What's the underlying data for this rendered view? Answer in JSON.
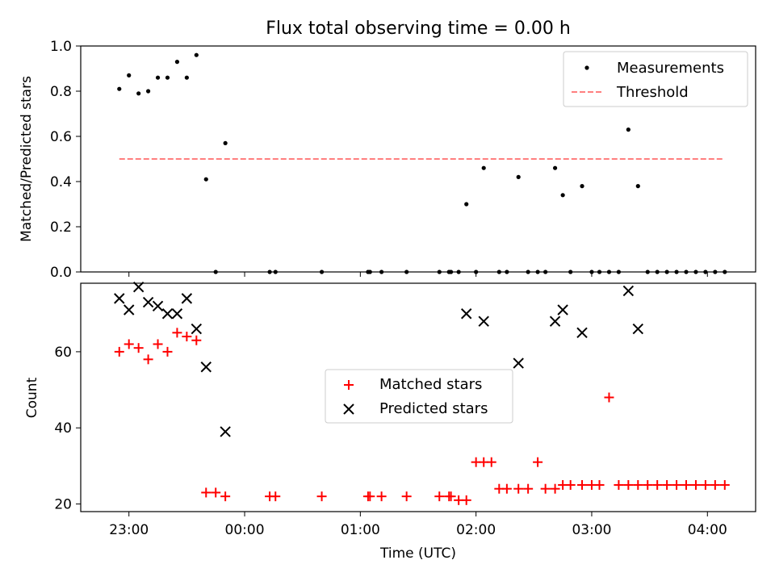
{
  "chart_data": [
    {
      "type": "scatter",
      "title": "Flux total observing time = 0.00 h",
      "xlabel": "",
      "ylabel": "Matched/Predicted stars",
      "ylim": [
        0,
        1.0
      ],
      "xlim": [
        "22:35",
        "04:25"
      ],
      "yticks": [
        "0.0",
        "0.2",
        "0.4",
        "0.6",
        "0.8",
        "1.0"
      ],
      "grid": false,
      "legend_position": "upper right",
      "legend": [
        "Measurements",
        "Threshold"
      ],
      "series": [
        {
          "name": "Measurements",
          "marker": "dot",
          "color": "#000000",
          "x": [
            "22:55",
            "23:00",
            "23:05",
            "23:10",
            "23:15",
            "23:20",
            "23:25",
            "23:30",
            "23:35",
            "23:40",
            "23:45",
            "23:50",
            "00:13",
            "00:16",
            "00:40",
            "01:04",
            "01:05",
            "01:11",
            "01:24",
            "01:41",
            "01:46",
            "01:47",
            "01:51",
            "01:55",
            "02:00",
            "02:04",
            "02:12",
            "02:16",
            "02:22",
            "02:27",
            "02:32",
            "02:36",
            "02:41",
            "02:45",
            "02:49",
            "02:55",
            "03:00",
            "03:04",
            "03:09",
            "03:14",
            "03:19",
            "03:24",
            "03:29",
            "03:34",
            "03:39",
            "03:44",
            "03:49",
            "03:54",
            "03:59",
            "04:04",
            "04:09"
          ],
          "y": [
            0.81,
            0.87,
            0.79,
            0.8,
            0.86,
            0.86,
            0.93,
            0.86,
            0.96,
            0.41,
            0.0,
            0.57,
            0.0,
            0.0,
            0.0,
            0.0,
            0.0,
            0.0,
            0.0,
            0.0,
            0.0,
            0.0,
            0.0,
            0.3,
            0.0,
            0.46,
            0.0,
            0.0,
            0.42,
            0.0,
            0.0,
            0.0,
            0.46,
            0.34,
            0.0,
            0.38,
            0.0,
            0.0,
            0.0,
            0.0,
            0.63,
            0.38,
            0.0,
            0.0,
            0.0,
            0.0,
            0.0,
            0.0,
            0.0,
            0.0,
            0.0
          ]
        },
        {
          "name": "Threshold",
          "style": "dashed",
          "color": "#ff7f7f",
          "x": [
            "22:55",
            "04:09"
          ],
          "y": [
            0.5,
            0.5
          ]
        }
      ]
    },
    {
      "type": "scatter",
      "title": "",
      "xlabel": "Time (UTC)",
      "ylabel": "Count",
      "ylim": [
        18,
        78
      ],
      "xlim": [
        "22:35",
        "04:25"
      ],
      "xticks": [
        "23:00",
        "00:00",
        "01:00",
        "02:00",
        "03:00",
        "04:00"
      ],
      "yticks": [
        "20",
        "40",
        "60"
      ],
      "grid": false,
      "legend_position": "center",
      "legend": [
        "Matched stars",
        "Predicted stars"
      ],
      "series": [
        {
          "name": "Matched stars",
          "marker": "plus",
          "color": "#ff0000",
          "x": [
            "22:55",
            "23:00",
            "23:05",
            "23:10",
            "23:15",
            "23:20",
            "23:25",
            "23:30",
            "23:35",
            "23:40",
            "23:45",
            "23:50",
            "00:13",
            "00:16",
            "00:40",
            "01:04",
            "01:05",
            "01:11",
            "01:24",
            "01:41",
            "01:46",
            "01:47",
            "01:51",
            "01:55",
            "02:00",
            "02:04",
            "02:08",
            "02:12",
            "02:16",
            "02:22",
            "02:27",
            "02:32",
            "02:36",
            "02:41",
            "02:45",
            "02:49",
            "02:55",
            "03:00",
            "03:04",
            "03:09",
            "03:14",
            "03:19",
            "03:24",
            "03:29",
            "03:34",
            "03:39",
            "03:44",
            "03:49",
            "03:54",
            "03:59",
            "04:04",
            "04:09"
          ],
          "y": [
            60,
            62,
            61,
            58,
            62,
            60,
            65,
            64,
            63,
            23,
            23,
            22,
            22,
            22,
            22,
            22,
            22,
            22,
            22,
            22,
            22,
            22,
            21,
            21,
            31,
            31,
            31,
            24,
            24,
            24,
            24,
            31,
            24,
            24,
            25,
            25,
            25,
            25,
            25,
            48,
            25,
            25,
            25,
            25,
            25,
            25,
            25,
            25,
            25,
            25,
            25,
            25
          ]
        },
        {
          "name": "Predicted stars",
          "marker": "x",
          "color": "#000000",
          "x": [
            "22:55",
            "23:00",
            "23:05",
            "23:10",
            "23:15",
            "23:20",
            "23:25",
            "23:30",
            "23:35",
            "23:40",
            "23:50",
            "01:55",
            "02:04",
            "02:22",
            "02:41",
            "02:45",
            "02:55",
            "03:19",
            "03:24"
          ],
          "y": [
            74,
            71,
            77,
            73,
            72,
            70,
            70,
            74,
            66,
            56,
            39,
            70,
            68,
            57,
            68,
            71,
            65,
            76,
            66
          ]
        }
      ]
    }
  ]
}
